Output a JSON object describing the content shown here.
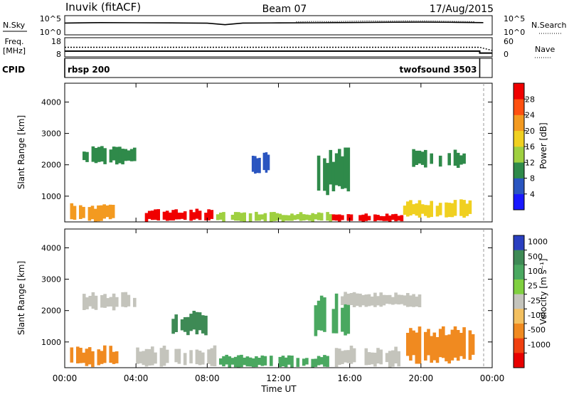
{
  "header": {
    "station": "Inuvik (fitACF)",
    "beam": "Beam 07",
    "date": "17/Aug/2015"
  },
  "strip_labels": {
    "nsky": "N.Sky",
    "nsearch": "N.Search",
    "freq_line1": "Freq.",
    "freq_line2": "[MHz]",
    "nave": "Nave",
    "cpid": "CPID"
  },
  "chart_data": [
    {
      "type": "line",
      "panel": "noise",
      "left_ticks": [
        "10^5",
        "10^0"
      ],
      "right_ticks": [
        "10^5",
        "10^0"
      ],
      "series": [
        {
          "name": "N.Sky",
          "style": "solid",
          "x": [
            0,
            2,
            4,
            6,
            8,
            9,
            10,
            12,
            14,
            16,
            18,
            20,
            22,
            23.5
          ],
          "y": [
            1200,
            1500,
            1400,
            1300,
            1100,
            450,
            1200,
            1300,
            1400,
            1600,
            1900,
            2100,
            1800,
            1500
          ]
        },
        {
          "name": "N.Search",
          "style": "dotted",
          "x": [
            13,
            14,
            15,
            16,
            17,
            18,
            19,
            20,
            21,
            22,
            23
          ],
          "y": [
            2500,
            3000,
            2800,
            3500,
            4000,
            3800,
            4200,
            4500,
            3900,
            3200,
            2700
          ]
        }
      ]
    },
    {
      "type": "line",
      "panel": "frequency",
      "left_ticks": [
        "18",
        "8"
      ],
      "right_ticks": [
        "60",
        "0"
      ],
      "series": [
        {
          "name": "Freq.",
          "style": "solid",
          "x": [
            0,
            23.3,
            23.3,
            24
          ],
          "y": [
            11,
            11,
            10,
            10
          ]
        },
        {
          "name": "Nave",
          "style": "dotted",
          "x": [
            0,
            23.3,
            24
          ],
          "y": [
            30,
            30,
            20
          ]
        }
      ]
    },
    {
      "type": "annotation",
      "panel": "cpid",
      "segments": [
        {
          "label": "rbsp 200",
          "start": 0,
          "end": 23.3
        },
        {
          "label": "twofsound 3503",
          "start": 23.3,
          "end": 24
        }
      ]
    },
    {
      "type": "heatmap",
      "panel": "power",
      "ylabel": "Slant Range [km]",
      "yticks": [
        "1000",
        "2000",
        "3000",
        "4000"
      ],
      "ylim": [
        180,
        4600
      ],
      "xlim": [
        0,
        24
      ],
      "colorbar": {
        "label": "Power [dB]",
        "ticks": [
          "4",
          "8",
          "12",
          "16",
          "20",
          "24",
          "28"
        ],
        "colors": [
          "#1818ff",
          "#2a55c0",
          "#2f8a4a",
          "#9fd040",
          "#f0d020",
          "#f39a20",
          "#ff5010",
          "#f00000"
        ]
      },
      "regions": [
        {
          "x": [
            0.3,
            2.8
          ],
          "y": [
            180,
            800
          ],
          "value": 24
        },
        {
          "x": [
            4.5,
            8.5
          ],
          "y": [
            180,
            600
          ],
          "value": 30
        },
        {
          "x": [
            8.5,
            15
          ],
          "y": [
            180,
            500
          ],
          "value": 16
        },
        {
          "x": [
            15,
            19
          ],
          "y": [
            180,
            450
          ],
          "value": 30
        },
        {
          "x": [
            19,
            23
          ],
          "y": [
            300,
            900
          ],
          "value": 20
        },
        {
          "x": [
            1,
            4
          ],
          "y": [
            2000,
            2600
          ],
          "value": 10
        },
        {
          "x": [
            10.5,
            11.5
          ],
          "y": [
            1700,
            2400
          ],
          "value": 8
        },
        {
          "x": [
            14,
            16
          ],
          "y": [
            1000,
            2600
          ],
          "value": 10
        },
        {
          "x": [
            19.5,
            22.5
          ],
          "y": [
            1900,
            2500
          ],
          "value": 12
        }
      ]
    },
    {
      "type": "heatmap",
      "panel": "velocity",
      "ylabel": "Slant Range [km]",
      "yticks": [
        "1000",
        "2000",
        "3000",
        "4000"
      ],
      "ylim": [
        180,
        4600
      ],
      "xlim": [
        0,
        24
      ],
      "xticks": [
        "00:00",
        "04:00",
        "08:00",
        "12:00",
        "16:00",
        "20:00",
        "00:00"
      ],
      "xlabel": "Time UT",
      "colorbar": {
        "label": "Velocity [m s⁻¹]",
        "ticks": [
          "1000",
          "500",
          "100",
          "25",
          "-25",
          "-100",
          "-500",
          "-1000"
        ],
        "colors": [
          "#2a3fc0",
          "#3e8a55",
          "#4aa860",
          "#80d040",
          "#c4c4bc",
          "#f3c060",
          "#f08a20",
          "#f04010",
          "#e80000"
        ]
      },
      "regions": [
        {
          "x": [
            0.3,
            3
          ],
          "y": [
            180,
            900
          ],
          "value": -300
        },
        {
          "x": [
            4,
            8.5
          ],
          "y": [
            180,
            900
          ],
          "value": 0
        },
        {
          "x": [
            8.5,
            15
          ],
          "y": [
            180,
            600
          ],
          "value": 150
        },
        {
          "x": [
            15,
            19
          ],
          "y": [
            180,
            900
          ],
          "value": 0
        },
        {
          "x": [
            19,
            23
          ],
          "y": [
            300,
            1500
          ],
          "value": -300
        },
        {
          "x": [
            1,
            4
          ],
          "y": [
            2000,
            2600
          ],
          "value": 0
        },
        {
          "x": [
            6,
            8
          ],
          "y": [
            1200,
            2000
          ],
          "value": 400
        },
        {
          "x": [
            14,
            16
          ],
          "y": [
            1000,
            2600
          ],
          "value": 100
        },
        {
          "x": [
            15.5,
            20
          ],
          "y": [
            2100,
            2600
          ],
          "value": 0
        }
      ]
    }
  ]
}
